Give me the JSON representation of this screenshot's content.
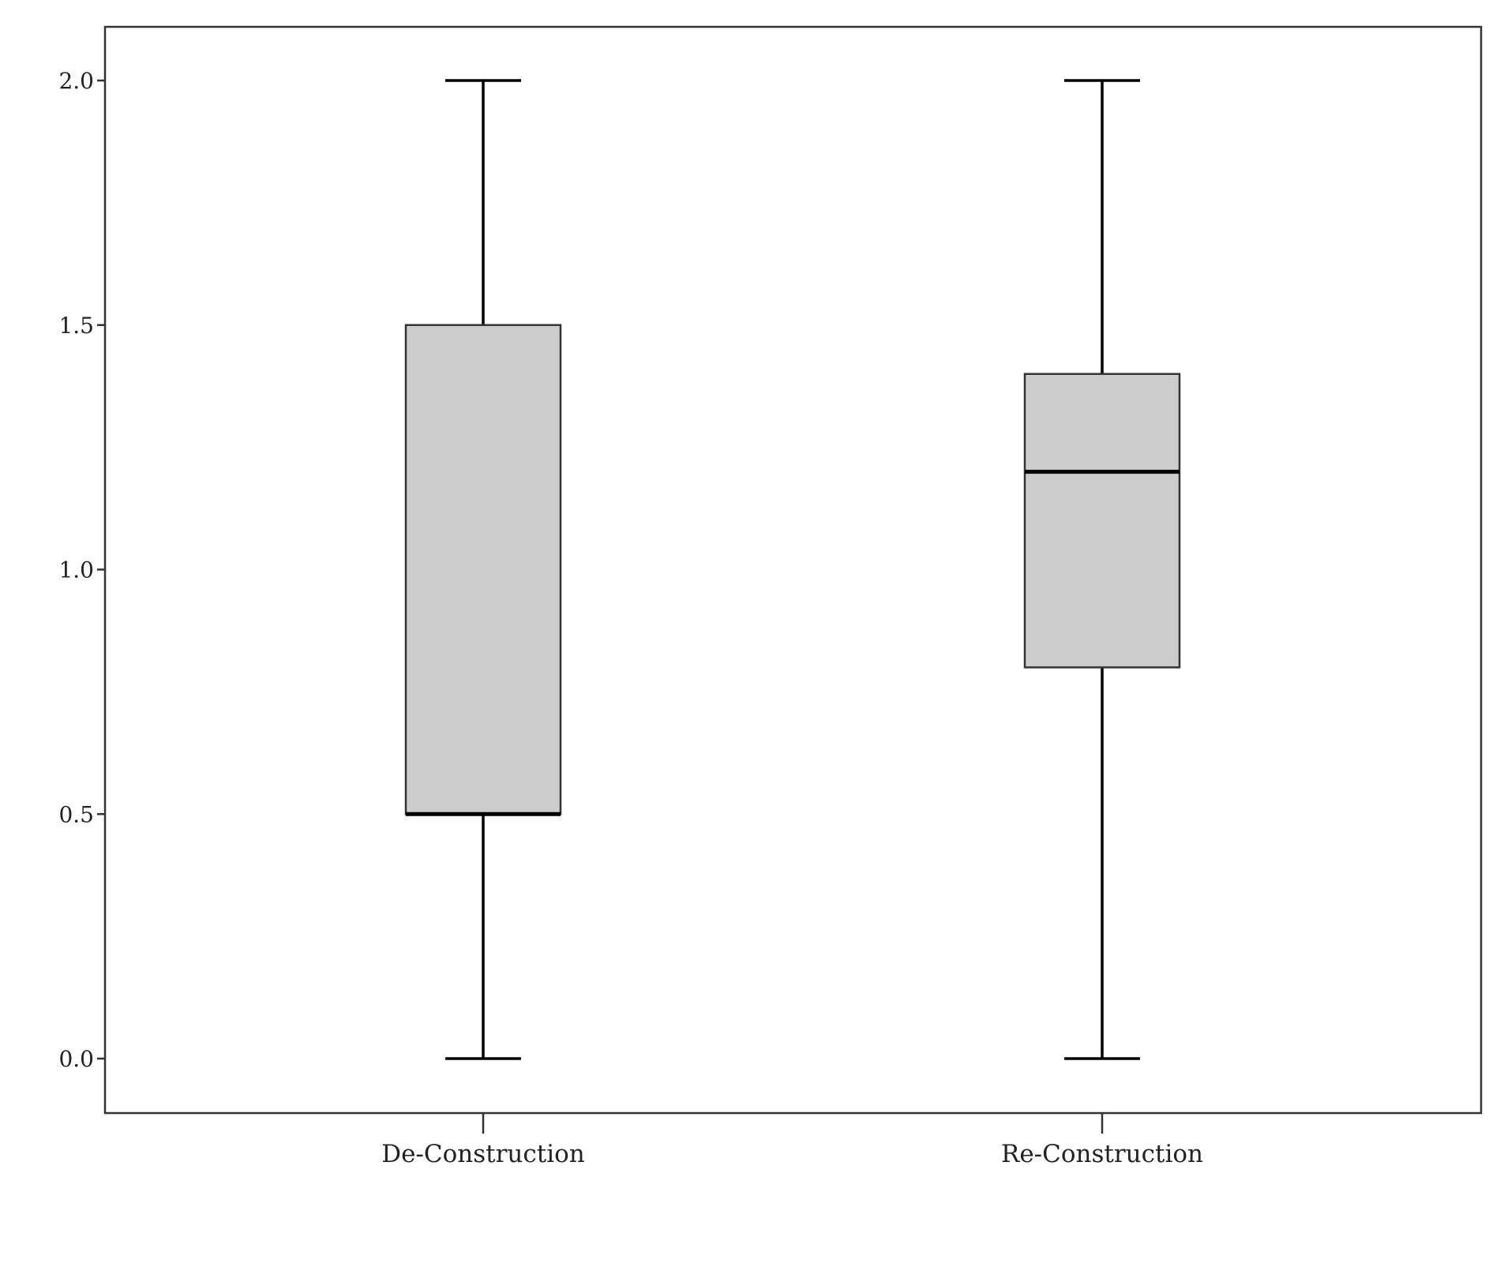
{
  "chart_data": {
    "type": "box",
    "title": "",
    "xlabel": "",
    "ylabel": "",
    "ylim": [
      -0.11,
      2.11
    ],
    "yticks": [
      0.0,
      0.5,
      1.0,
      1.5,
      2.0
    ],
    "ytick_labels": [
      "0.0",
      "0.5",
      "1.0",
      "1.5",
      "2.0"
    ],
    "categories": [
      "De-Construction",
      "Re-Construction"
    ],
    "boxes": [
      {
        "category": "De-Construction",
        "min": 0.0,
        "q1": 0.5,
        "median": 0.5,
        "q3": 1.5,
        "max": 2.0
      },
      {
        "category": "Re-Construction",
        "min": 0.0,
        "q1": 0.8,
        "median": 1.2,
        "q3": 1.4,
        "max": 2.0
      }
    ],
    "grid": false,
    "colors": {
      "box_fill": "#cccccc",
      "stroke": "#000000",
      "frame": "#333333"
    }
  }
}
